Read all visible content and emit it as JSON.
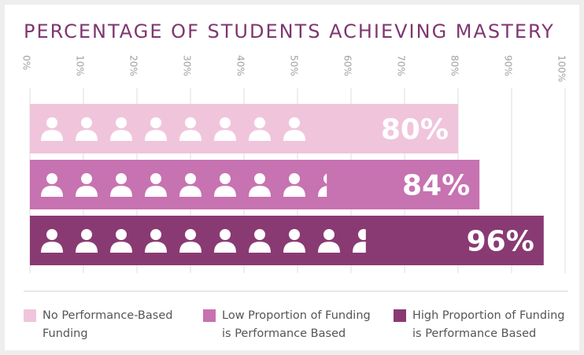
{
  "chart_data": {
    "type": "bar",
    "orientation": "horizontal",
    "title": "PERCENTAGE OF STUDENTS ACHIEVING MASTERY",
    "series": [
      {
        "name": "No Performance-Based Funding",
        "color": "#f0c5dc",
        "values": [
          80
        ],
        "value_labels": [
          "80%"
        ]
      },
      {
        "name": "Low Proportion of Funding is Performance Based",
        "color": "#c772b1",
        "values": [
          84
        ],
        "value_labels": [
          "84%"
        ]
      },
      {
        "name": "High Proportion of Funding is Performance Based",
        "color": "#893a73",
        "values": [
          96
        ],
        "value_labels": [
          "96%"
        ]
      }
    ],
    "xlim": [
      0,
      100
    ],
    "xticks": [
      {
        "value": 0,
        "label": "0%"
      },
      {
        "value": 10,
        "label": "10%"
      },
      {
        "value": 20,
        "label": "20%"
      },
      {
        "value": 30,
        "label": "30%"
      },
      {
        "value": 40,
        "label": "40%"
      },
      {
        "value": 50,
        "label": "50%"
      },
      {
        "value": 60,
        "label": "60%"
      },
      {
        "value": 70,
        "label": "70%"
      },
      {
        "value": 80,
        "label": "80%"
      },
      {
        "value": 90,
        "label": "90%"
      },
      {
        "value": 100,
        "label": "100%"
      }
    ],
    "grid": true,
    "legend": "bottom"
  }
}
